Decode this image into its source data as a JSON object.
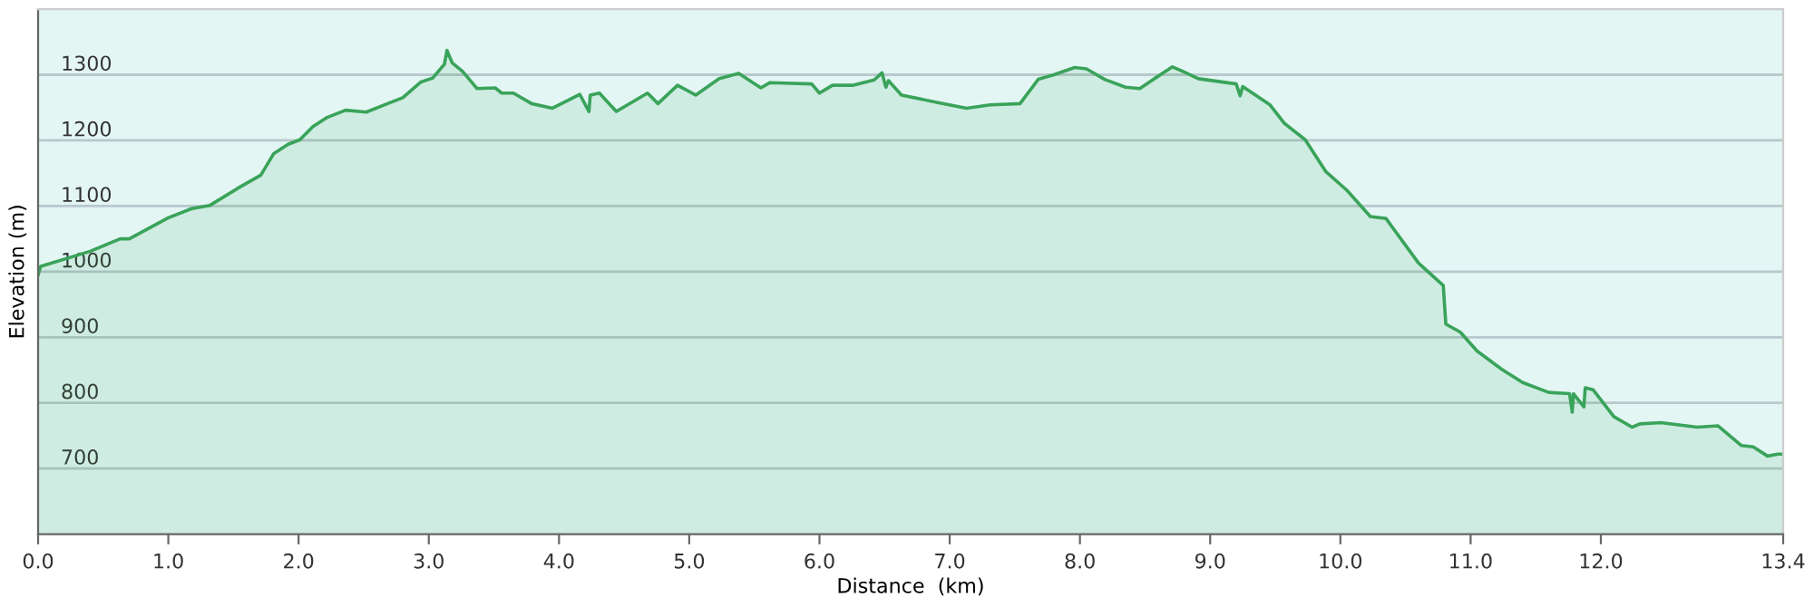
{
  "chart_data": {
    "type": "area",
    "xlabel": "Distance  (km)",
    "ylabel": "Elevation (m)",
    "xlim": [
      0,
      13.4
    ],
    "ylim": [
      600,
      1400
    ],
    "xticks": [
      {
        "value": 0,
        "label": "0.0"
      },
      {
        "value": 1,
        "label": "1.0"
      },
      {
        "value": 2,
        "label": "2.0"
      },
      {
        "value": 3,
        "label": "3.0"
      },
      {
        "value": 4,
        "label": "4.0"
      },
      {
        "value": 5,
        "label": "5.0"
      },
      {
        "value": 6,
        "label": "6.0"
      },
      {
        "value": 7,
        "label": "7.0"
      },
      {
        "value": 8,
        "label": "8.0"
      },
      {
        "value": 9,
        "label": "9.0"
      },
      {
        "value": 10,
        "label": "10.0"
      },
      {
        "value": 11,
        "label": "11.0"
      },
      {
        "value": 12,
        "label": "12.0"
      },
      {
        "value": 13.4,
        "label": "13.4"
      }
    ],
    "yticks": [
      700,
      800,
      900,
      1000,
      1100,
      1200,
      1300
    ],
    "grid": "y",
    "legend": false,
    "series": [
      {
        "color": "#3aa35a",
        "x": [
          0,
          0.02,
          0.4,
          0.63,
          0.7,
          1.0,
          1.18,
          1.32,
          1.55,
          1.71,
          1.81,
          1.92,
          2.01,
          2.11,
          2.22,
          2.36,
          2.52,
          2.71,
          2.8,
          2.94,
          3.03,
          3.12,
          3.14,
          3.18,
          3.26,
          3.37,
          3.51,
          3.56,
          3.65,
          3.79,
          3.95,
          4.16,
          4.23,
          4.24,
          4.31,
          4.44,
          4.68,
          4.76,
          4.91,
          5.05,
          5.23,
          5.38,
          5.55,
          5.62,
          5.94,
          6.0,
          6.1,
          6.26,
          6.42,
          6.48,
          6.51,
          6.53,
          6.63,
          6.9,
          7.13,
          7.31,
          7.54,
          7.68,
          7.8,
          7.96,
          8.05,
          8.19,
          8.35,
          8.46,
          8.55,
          8.71,
          8.78,
          8.91,
          9.2,
          9.23,
          9.25,
          9.46,
          9.57,
          9.73,
          9.89,
          10.05,
          10.23,
          10.35,
          10.6,
          10.79,
          10.81,
          10.92,
          11.05,
          11.24,
          11.4,
          11.6,
          11.76,
          11.78,
          11.79,
          11.87,
          11.88,
          11.94,
          12.1,
          12.24,
          12.3,
          12.46,
          12.74,
          12.9,
          13.08,
          13.17,
          13.28,
          13.36,
          13.4
        ],
        "values": [
          995,
          1008,
          1031,
          1050,
          1050,
          1082,
          1096,
          1101,
          1129,
          1147,
          1180,
          1194,
          1201,
          1221,
          1235,
          1246,
          1243,
          1258,
          1265,
          1289,
          1295,
          1316,
          1337,
          1318,
          1305,
          1279,
          1280,
          1272,
          1272,
          1256,
          1249,
          1270,
          1244,
          1269,
          1272,
          1244,
          1272,
          1256,
          1284,
          1269,
          1294,
          1302,
          1280,
          1288,
          1286,
          1272,
          1284,
          1284,
          1292,
          1303,
          1281,
          1291,
          1269,
          1258,
          1249,
          1254,
          1256,
          1293,
          1300,
          1311,
          1309,
          1293,
          1281,
          1279,
          1291,
          1312,
          1306,
          1294,
          1286,
          1268,
          1282,
          1254,
          1226,
          1201,
          1152,
          1124,
          1084,
          1081,
          1013,
          979,
          920,
          908,
          879,
          851,
          831,
          816,
          814,
          786,
          814,
          794,
          823,
          820,
          779,
          763,
          768,
          770,
          763,
          765,
          735,
          733,
          719,
          722,
          722
        ]
      }
    ]
  }
}
